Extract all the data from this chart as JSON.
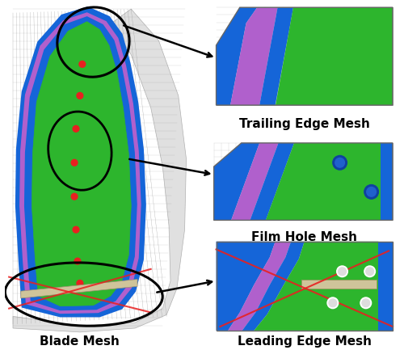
{
  "background_color": "#ffffff",
  "labels": {
    "trailing_edge": "Trailing Edge Mesh",
    "film_hole": "Film Hole Mesh",
    "leading_edge": "Leading Edge Mesh",
    "blade": "Blade Mesh"
  },
  "label_fontsize": 11,
  "figsize": [
    5.0,
    4.33
  ],
  "dpi": 100,
  "colors": {
    "blue": "#1565d8",
    "green": "#2db52d",
    "purple": "#b060cc",
    "gray_mesh": "#c0c0c0",
    "gray_light": "#e0e0e0",
    "gray_mid": "#b0b0b0",
    "red": "#e82020",
    "beige": "#cfc49a",
    "white": "#ffffff",
    "black": "#000000"
  }
}
